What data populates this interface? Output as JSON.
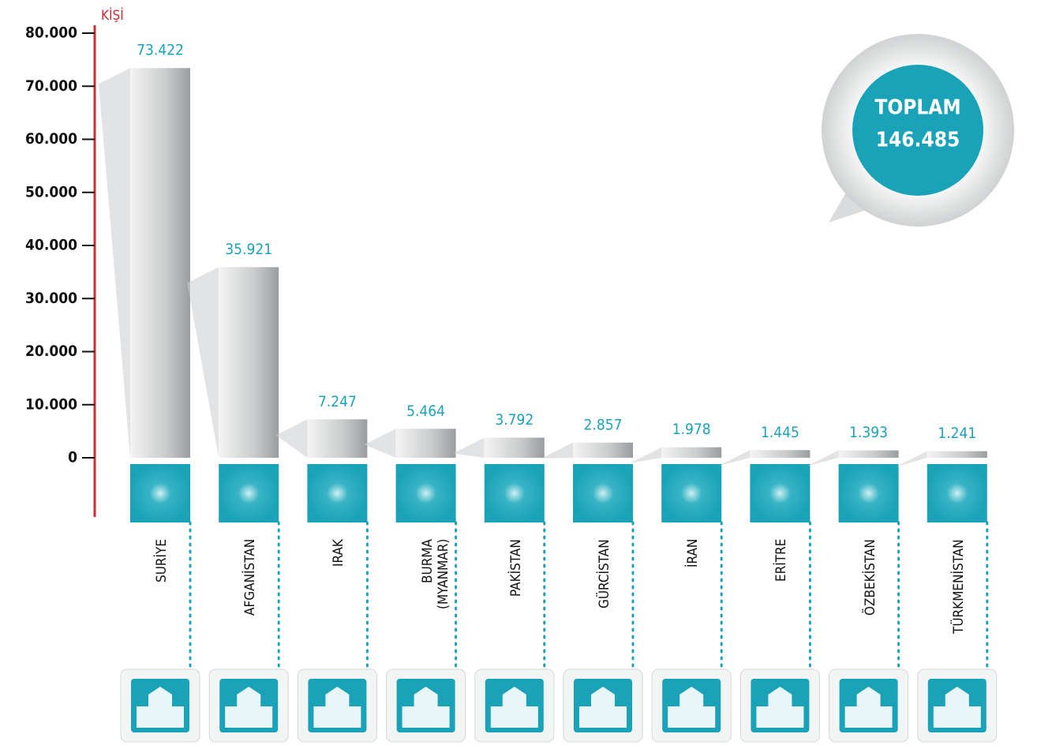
{
  "chart_data": {
    "type": "bar",
    "y_axis_label": "KİŞİ",
    "categories": [
      "SURİYE",
      "AFGANİSTAN",
      "IRAK",
      "BURMA\n(MYANMAR)",
      "PAKİSTAN",
      "GÜRCİSTAN",
      "İRAN",
      "ERİTRE",
      "ÖZBEKİSTAN",
      "TÜRKMENİSTAN"
    ],
    "values": [
      73422,
      35921,
      7247,
      5464,
      3792,
      2857,
      1978,
      1445,
      1393,
      1241
    ],
    "value_labels": [
      "73.422",
      "35.921",
      "7.247",
      "5.464",
      "3.792",
      "2.857",
      "1.978",
      "1.445",
      "1.393",
      "1.241"
    ],
    "color": "#1aa3b8",
    "ylim": [
      0,
      80000
    ],
    "yticks": [
      {
        "value": 0,
        "label": "0"
      },
      {
        "value": 10000,
        "label": "10.000"
      },
      {
        "value": 20000,
        "label": "20.000"
      },
      {
        "value": 30000,
        "label": "30.000"
      },
      {
        "value": 40000,
        "label": "40.000"
      },
      {
        "value": 50000,
        "label": "50.000"
      },
      {
        "value": 60000,
        "label": "60.000"
      },
      {
        "value": 70000,
        "label": "70.000"
      },
      {
        "value": 80000,
        "label": "80.000"
      }
    ],
    "total_title": "TOPLAM",
    "total_text": "146.485"
  }
}
